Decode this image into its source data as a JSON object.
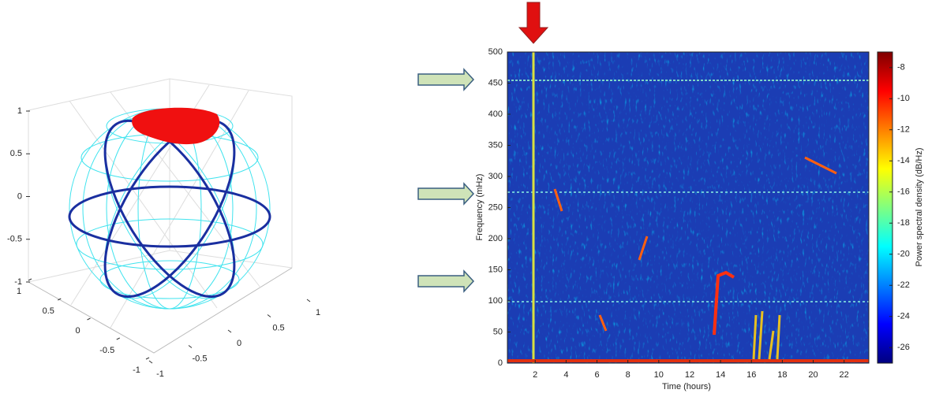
{
  "chart_data": [
    {
      "type": "sphere",
      "xticks": [
        1,
        0.5,
        0,
        -0.5,
        -1
      ],
      "yticks": [
        1,
        0.5,
        0,
        -0.5,
        -1
      ],
      "zticks": [
        1,
        0.5,
        0,
        -0.5,
        -1
      ],
      "xlim": [
        -1,
        1
      ],
      "ylim": [
        -1,
        1
      ],
      "zlim": [
        -1,
        1
      ],
      "grid": true
    },
    {
      "type": "spectrogram",
      "xlabel": "Time (hours)",
      "ylabel": "Frequency (mHz)",
      "xlim": [
        0.2,
        23.6
      ],
      "xticks": [
        2,
        4,
        6,
        8,
        10,
        12,
        14,
        16,
        18,
        20,
        22
      ],
      "ylim": [
        0,
        500
      ],
      "yticks": [
        0,
        50,
        100,
        150,
        200,
        250,
        300,
        350,
        400,
        450,
        500
      ],
      "colorbar": {
        "label": "Power spectral density (dB/Hz)",
        "lim": [
          -27,
          -7
        ],
        "ticks": [
          -8,
          -10,
          -12,
          -14,
          -16,
          -18,
          -20,
          -22,
          -24,
          -26
        ],
        "colormap": [
          "#00007f",
          "#0000ff",
          "#0080ff",
          "#00ffff",
          "#80ff80",
          "#ffff00",
          "#ff8000",
          "#ff0000",
          "#7f0000"
        ]
      }
    }
  ]
}
